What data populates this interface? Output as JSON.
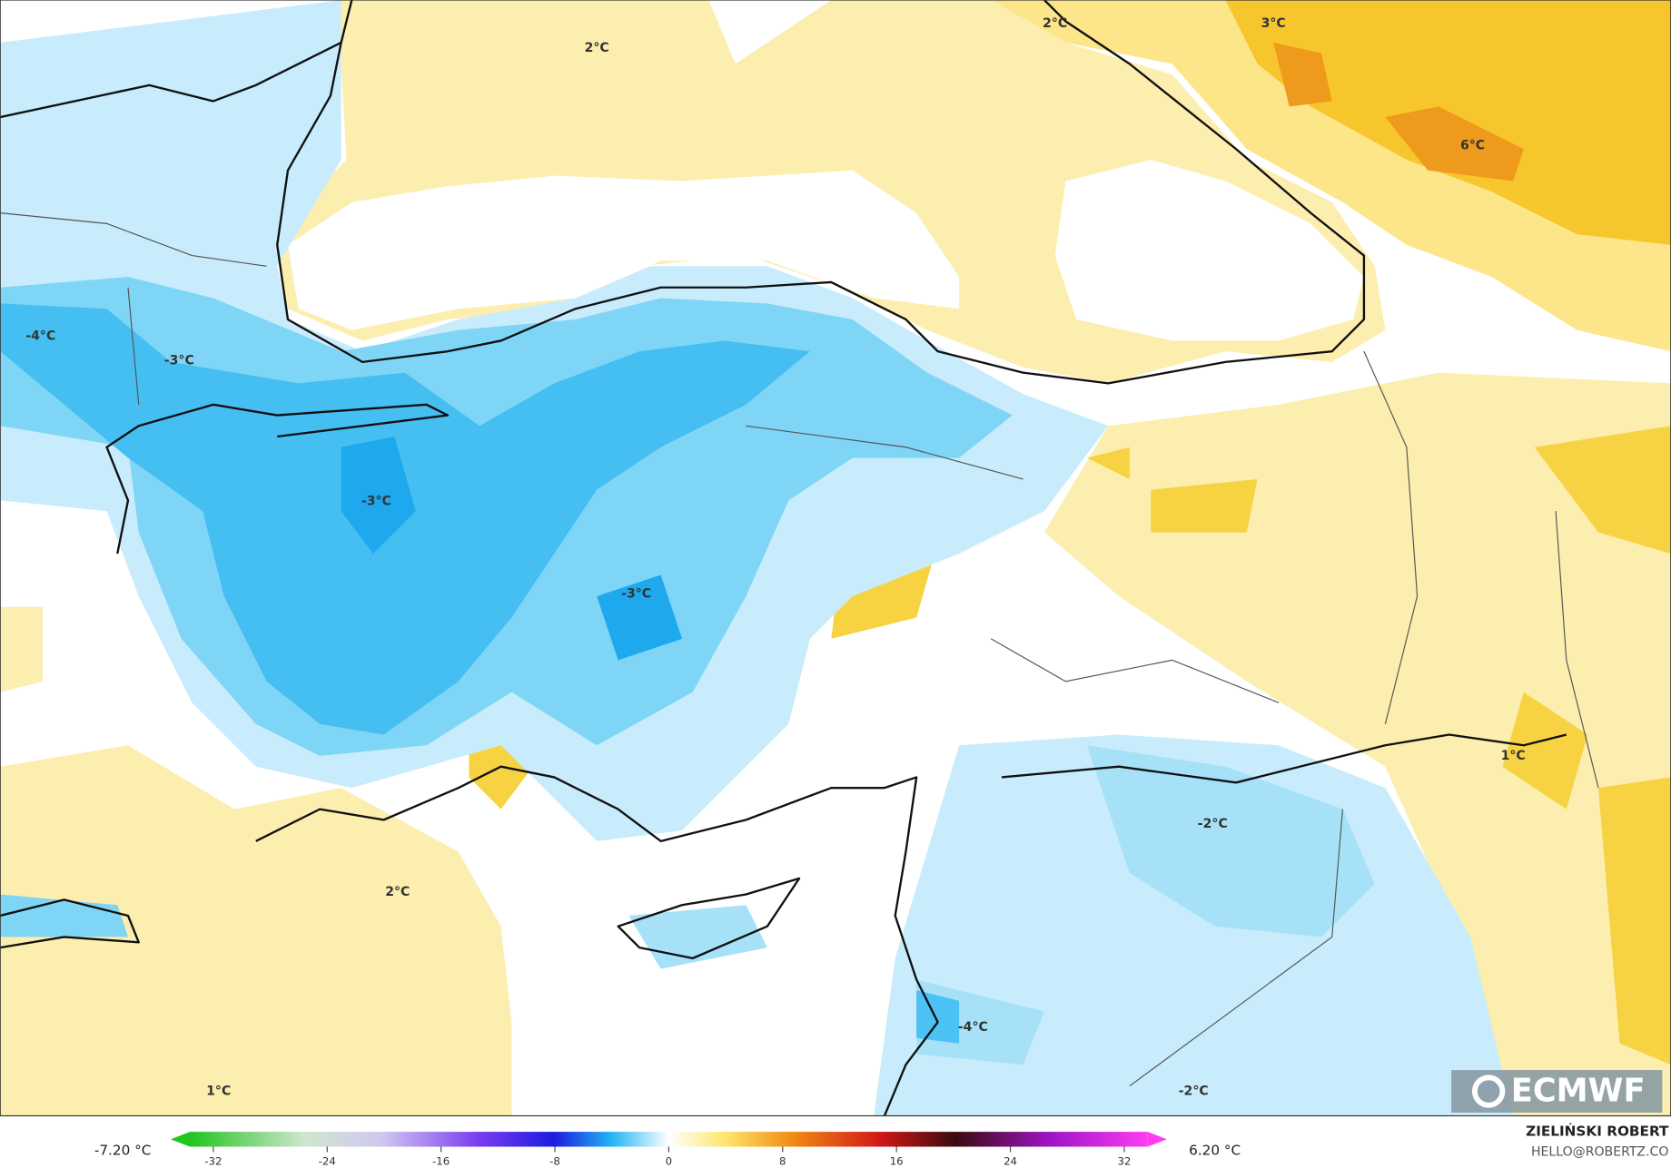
{
  "map": {
    "contour_labels": [
      "2°C",
      "2°C",
      "3°C",
      "6°C",
      "-4°C",
      "-3°C",
      "-3°C",
      "-3°C",
      "1°C",
      "-2°C",
      "2°C",
      "1°C",
      "-4°C",
      "-2°C"
    ],
    "colorbar": {
      "ticks": [
        -32,
        -24,
        -16,
        -8,
        0,
        8,
        16,
        24,
        32
      ],
      "min_label": "-7.20 °C",
      "max_label": "6.20 °C"
    },
    "logo": "ECMWF",
    "credit": {
      "author": "ZIELIŃSKI ROBERT",
      "email": "HELLO@ROBERTZ.CO"
    }
  }
}
